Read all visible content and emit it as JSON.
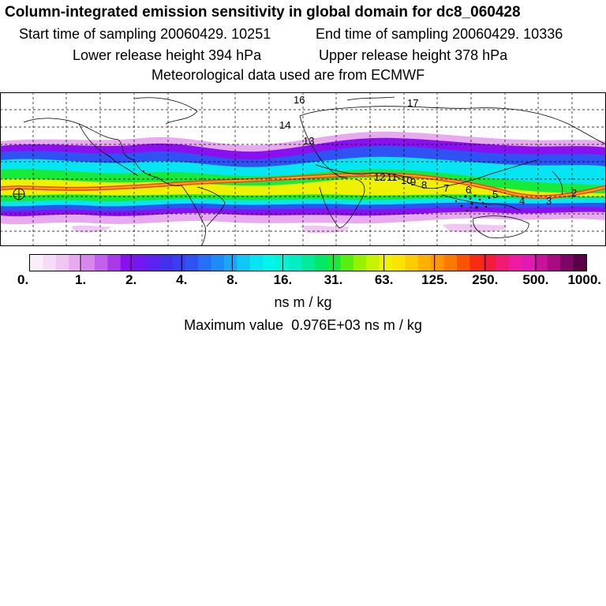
{
  "header": {
    "title": "Column-integrated emission sensitivity in global domain for dc8_060428",
    "start_time": "Start time of sampling 20060429. 10251",
    "end_time": "End time of sampling 20060429. 10336",
    "lower_release": "Lower release height  394 hPa",
    "upper_release": "Upper release height  378 hPa",
    "met_data": "Meteorological data used are from ECMWF"
  },
  "map": {
    "trajectory_labels": [
      "16",
      "17",
      "14",
      "13",
      "12",
      "11",
      "10",
      "9",
      "8",
      "7",
      "6",
      "5",
      "4",
      "3",
      "2"
    ]
  },
  "colorbar": {
    "tick_labels": [
      "0.",
      "1.",
      "2.",
      "4.",
      "8.",
      "16.",
      "31.",
      "63.",
      "125.",
      "250.",
      "500.",
      "1000."
    ],
    "colors": [
      "#fbeefb",
      "#f6dcf6",
      "#f0c6f3",
      "#e8aaef",
      "#d786ee",
      "#c160ec",
      "#a838ea",
      "#8a10f0",
      "#7418f2",
      "#5c22f0",
      "#4230ea",
      "#3b3ff0",
      "#2f52f2",
      "#2770f5",
      "#1e8cf7",
      "#18a8f7",
      "#10c8f5",
      "#06e6f2",
      "#00f6ea",
      "#00f2d8",
      "#00eec0",
      "#00ea9a",
      "#00e86a",
      "#18ea3a",
      "#58ee10",
      "#96f200",
      "#c6f400",
      "#eef200",
      "#fbe400",
      "#fdcc00",
      "#feb000",
      "#fd9600",
      "#fc7a00",
      "#fa5400",
      "#f72c12",
      "#f31a3c",
      "#f01a72",
      "#f01aa0",
      "#e01ab4",
      "#c8129c",
      "#a80c82",
      "#7c0664",
      "#5a0248"
    ],
    "units": "ns m / kg",
    "maximum_label": "Maximum value",
    "maximum_value": "0.976E+03",
    "maximum_units": "ns m / kg"
  }
}
